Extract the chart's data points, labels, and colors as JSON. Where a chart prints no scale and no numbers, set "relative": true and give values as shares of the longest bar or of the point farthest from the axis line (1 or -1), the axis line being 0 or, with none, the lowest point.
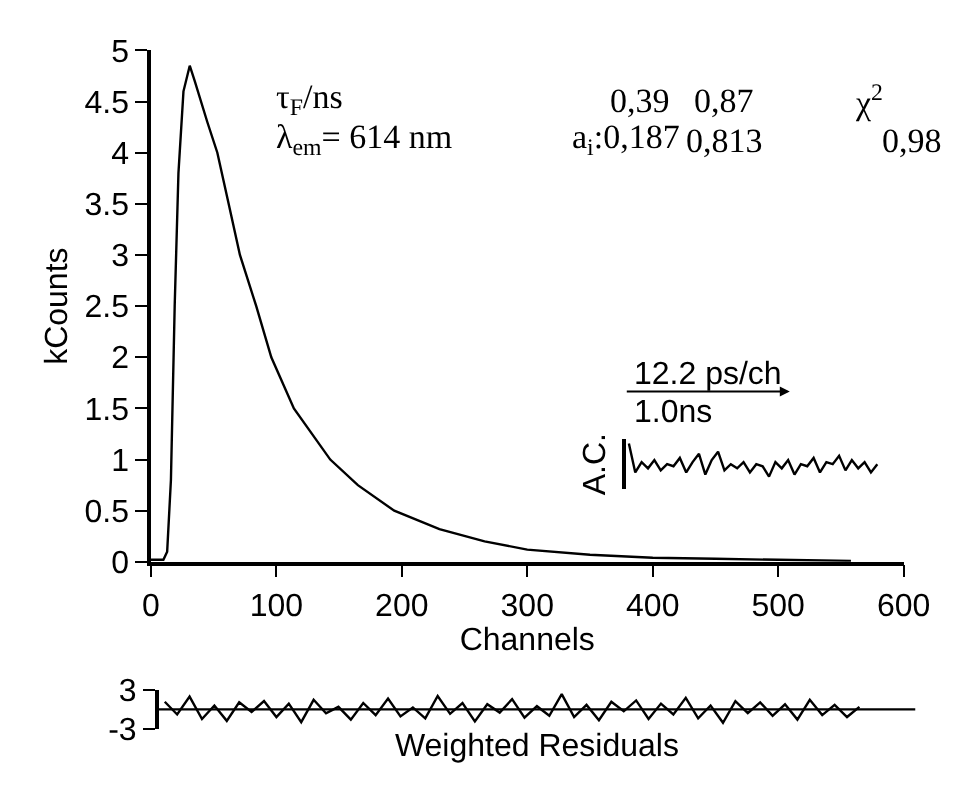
{
  "chart_data": [
    {
      "type": "line",
      "xlabel": "Channels",
      "ylabel": "kCounts",
      "color": "#000000",
      "x": [
        0,
        10,
        13,
        16,
        19,
        22,
        26,
        31,
        35,
        45,
        53,
        62,
        71,
        84,
        96,
        114,
        143,
        165,
        194,
        230,
        266,
        300,
        350,
        400,
        450,
        500,
        558
      ],
      "values": [
        0.02,
        0.02,
        0.1,
        0.8,
        2.5,
        3.8,
        4.6,
        4.85,
        4.7,
        4.3,
        4.0,
        3.5,
        3.0,
        2.5,
        2.0,
        1.5,
        1.0,
        0.75,
        0.5,
        0.32,
        0.2,
        0.12,
        0.07,
        0.04,
        0.03,
        0.02,
        0.01
      ],
      "xlim": [
        0,
        600
      ],
      "xticks": [
        0,
        100,
        200,
        300,
        400,
        500,
        600
      ],
      "ylim": [
        0,
        5
      ],
      "yticks": [
        0,
        0.5,
        1,
        1.5,
        2,
        2.5,
        3,
        3.5,
        4,
        4.5,
        5
      ],
      "annotations": [
        "τ$_{F}$/ns",
        "λ$_{em}$= 614 nm",
        "0,39",
        "0,87",
        "χ$^{2}$",
        "a$_{i}$:0,187",
        "0,813",
        "0,98"
      ]
    },
    {
      "type": "line",
      "ylabel": "A.C.",
      "relative": true,
      "color": "#000000",
      "categories": [
        null,
        null,
        null,
        null,
        null,
        null,
        null,
        null,
        null,
        null,
        null,
        null,
        null,
        null,
        null,
        null,
        null,
        null,
        null,
        null,
        null,
        null,
        null,
        null,
        null,
        null,
        null,
        null,
        null,
        null,
        null,
        null,
        null,
        null,
        null,
        null,
        null,
        null,
        null,
        null
      ],
      "values": [
        1.0,
        0.3,
        0.55,
        0.4,
        0.6,
        0.35,
        0.5,
        0.45,
        0.65,
        0.3,
        0.55,
        0.75,
        0.25,
        0.6,
        0.8,
        0.35,
        0.5,
        0.4,
        0.55,
        0.3,
        0.5,
        0.45,
        0.2,
        0.55,
        0.4,
        0.6,
        0.25,
        0.5,
        0.45,
        0.65,
        0.3,
        0.55,
        0.5,
        0.7,
        0.35,
        0.6,
        0.4,
        0.55,
        0.3,
        0.5
      ],
      "annotations": [
        "12.2 ps/ch",
        "1.0ns"
      ]
    },
    {
      "type": "line",
      "xlabel": "Weighted Residuals",
      "color": "#000000",
      "categories": [
        null,
        null,
        null,
        null,
        null,
        null,
        null,
        null,
        null,
        null,
        null,
        null,
        null,
        null,
        null,
        null,
        null,
        null,
        null,
        null,
        null,
        null,
        null,
        null,
        null,
        null,
        null,
        null,
        null,
        null,
        null,
        null,
        null,
        null,
        null,
        null,
        null,
        null,
        null,
        null,
        null,
        null,
        null,
        null,
        null,
        null,
        null,
        null,
        null,
        null,
        null,
        null,
        null,
        null,
        null,
        null,
        null
      ],
      "values": [
        1.2,
        -0.8,
        2.0,
        -1.5,
        0.6,
        -1.8,
        1.1,
        -0.4,
        1.3,
        -1.2,
        0.9,
        -2.0,
        1.5,
        -0.6,
        0.4,
        -1.6,
        1.0,
        -0.9,
        1.7,
        -1.1,
        0.3,
        -1.4,
        2.1,
        -0.7,
        1.0,
        -1.9,
        0.8,
        -0.5,
        1.6,
        -1.3,
        0.5,
        -1.0,
        2.4,
        -1.2,
        0.7,
        -1.7,
        1.2,
        -0.3,
        1.4,
        -1.5,
        0.9,
        -0.8,
        1.8,
        -1.4,
        0.6,
        -2.1,
        1.3,
        -0.6,
        1.1,
        -1.0,
        0.8,
        -1.6,
        1.5,
        -0.9,
        0.7,
        -1.2,
        0.4
      ],
      "ylim": [
        -3,
        3
      ],
      "yticks": [
        -3,
        3
      ],
      "tick_labels": "y",
      "ref_lines": [
        {
          "axis": "y",
          "value": 0
        }
      ]
    }
  ]
}
